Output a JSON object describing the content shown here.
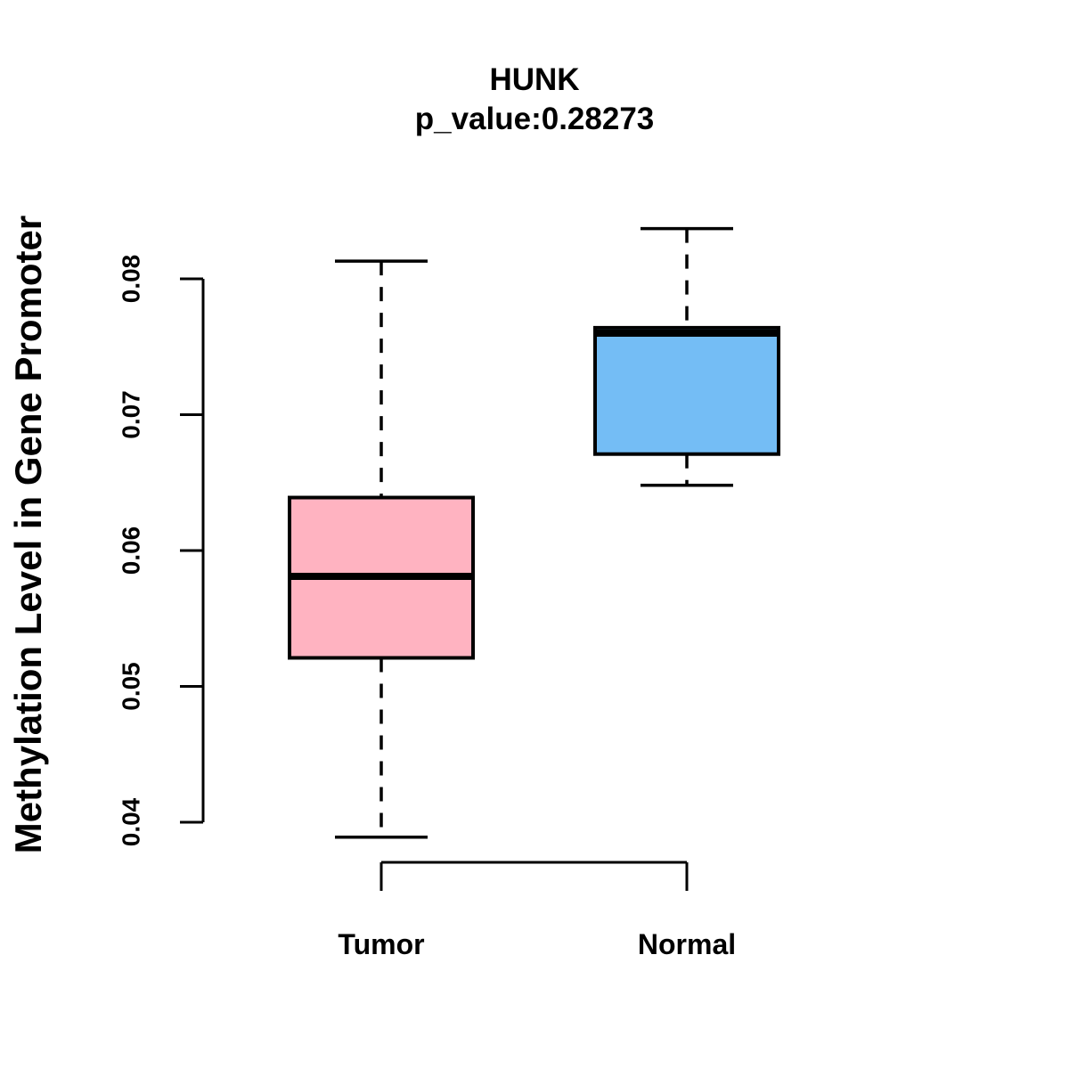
{
  "title": "HUNK",
  "subtitle": "p_value:0.28273",
  "chart_data": {
    "type": "boxplot",
    "title": "HUNK",
    "subtitle": "p_value:0.28273",
    "p_value": 0.28273,
    "gene": "HUNK",
    "ylabel": "Methylation Level in Gene Promoter",
    "xlabel": "",
    "categories": [
      "Tumor",
      "Normal"
    ],
    "yticks": [
      0.04,
      0.05,
      0.06,
      0.07,
      0.08
    ],
    "ytick_labels": [
      "0.04",
      "0.05",
      "0.06",
      "0.07",
      "0.08"
    ],
    "ylim": [
      0.0389,
      0.0837
    ],
    "grid": false,
    "legend": false,
    "series": [
      {
        "name": "Tumor",
        "color": "#FFB3C1",
        "min": 0.0389,
        "q1": 0.0521,
        "median": 0.0581,
        "q3": 0.0639,
        "max": 0.0813
      },
      {
        "name": "Normal",
        "color": "#74BDF5",
        "min": 0.0648,
        "q1": 0.0671,
        "median": 0.076,
        "q3": 0.0764,
        "max": 0.0837
      }
    ],
    "whisker_style": "dashed",
    "stroke_color": "#000000",
    "background_color": "#FFFFFF"
  }
}
